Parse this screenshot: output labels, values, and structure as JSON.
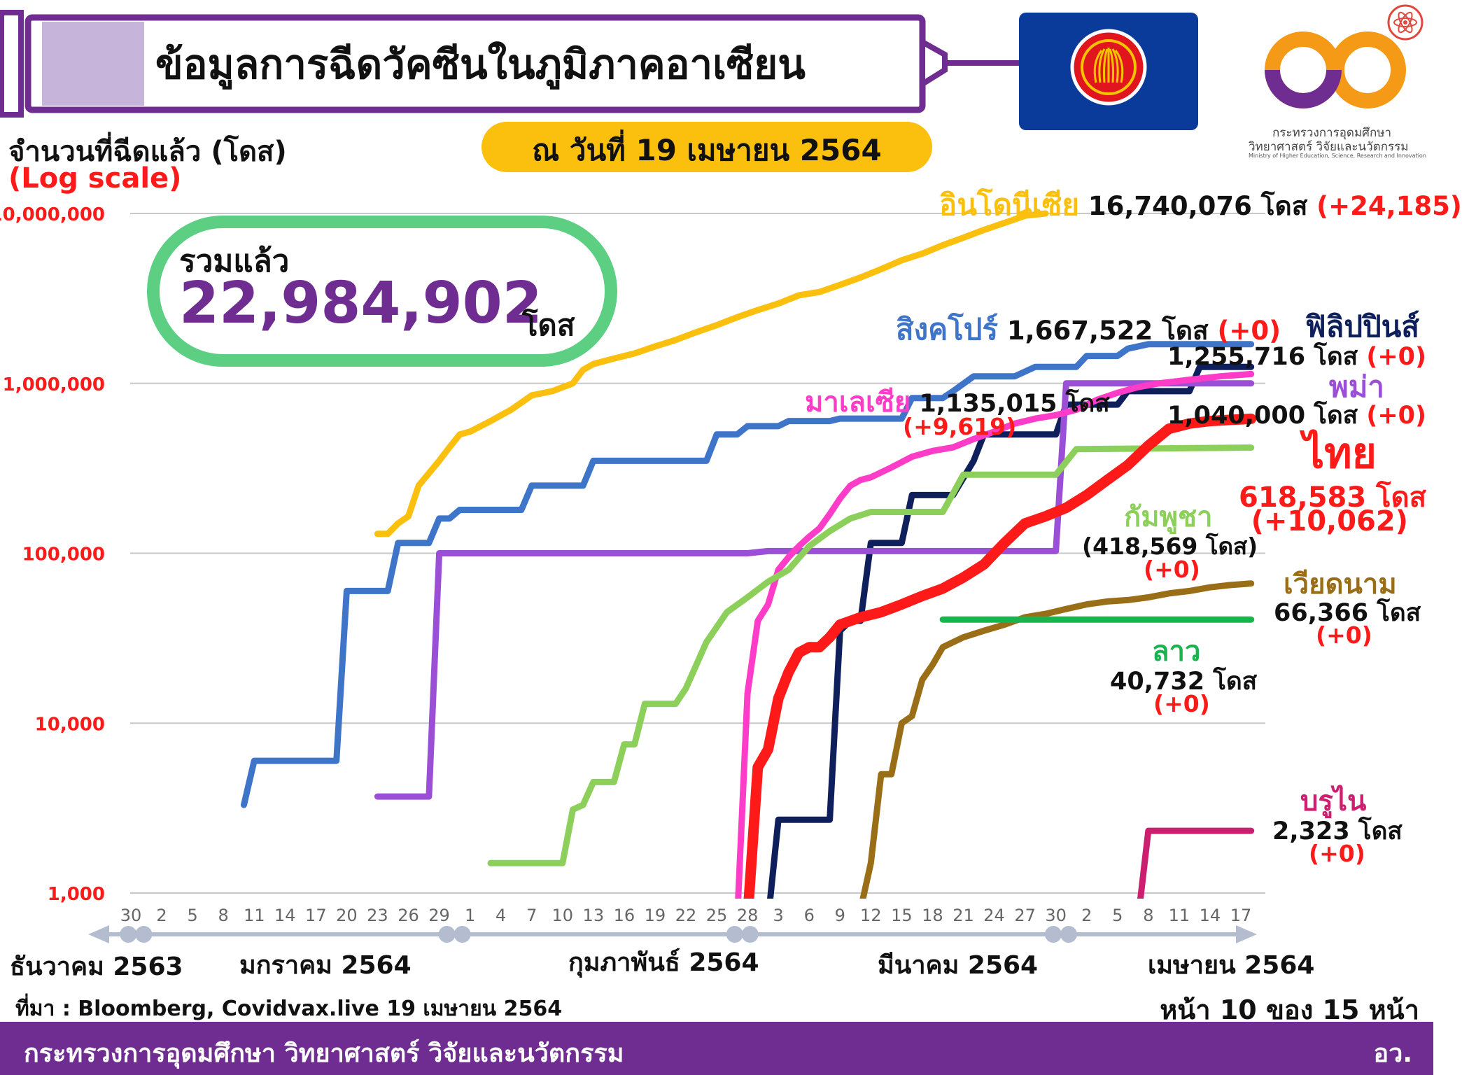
{
  "header": {
    "title": "ข้อมูลการฉีดวัคซีนในภูมิภาคอาเซียน",
    "date_label": "ณ วันที่ 19 เมษายน 2564",
    "ministry_th": "กระทรวงการอุดมศึกษา",
    "ministry_th2": "วิทยาศาสตร์ วิจัยและนวัตกรรม",
    "ministry_en": "Ministry of Higher Education, Science, Research and Innovation"
  },
  "summary": {
    "label": "รวมแล้ว",
    "value": "22,984,902",
    "unit": "โดส"
  },
  "colors": {
    "purple": "#6f2c91",
    "lilac": "#c6b4db",
    "gold": "#fbbf0e",
    "pill": "#5ccf83",
    "asean_blue": "#0a3a9a",
    "asean_red": "#e1151d"
  },
  "chart_data": {
    "type": "line",
    "ylabel": "จำนวนที่ฉีดแล้ว (โดส)",
    "yscale_note": "(Log scale)",
    "y_scale": "log",
    "ylim": [
      1000,
      10000000
    ],
    "yticks": [
      {
        "value": 1000,
        "label": "1,000"
      },
      {
        "value": 10000,
        "label": "10,000"
      },
      {
        "value": 100000,
        "label": "100,000"
      },
      {
        "value": 1000000,
        "label": "1,000,000"
      },
      {
        "value": 10000000,
        "label": "10,000,000"
      }
    ],
    "grid": true,
    "x_axis": "daily, 30 ธ.ค. 2563 – 19 เม.ย. 2564",
    "xticks": [
      {
        "day": 0,
        "label": "30"
      },
      {
        "day": 3,
        "label": "2"
      },
      {
        "day": 6,
        "label": "5"
      },
      {
        "day": 9,
        "label": "8"
      },
      {
        "day": 12,
        "label": "11"
      },
      {
        "day": 15,
        "label": "14"
      },
      {
        "day": 18,
        "label": "17"
      },
      {
        "day": 21,
        "label": "20"
      },
      {
        "day": 24,
        "label": "23"
      },
      {
        "day": 27,
        "label": "26"
      },
      {
        "day": 30,
        "label": "29"
      },
      {
        "day": 33,
        "label": "1"
      },
      {
        "day": 36,
        "label": "4"
      },
      {
        "day": 39,
        "label": "7"
      },
      {
        "day": 42,
        "label": "10"
      },
      {
        "day": 45,
        "label": "13"
      },
      {
        "day": 48,
        "label": "16"
      },
      {
        "day": 51,
        "label": "19"
      },
      {
        "day": 54,
        "label": "22"
      },
      {
        "day": 57,
        "label": "25"
      },
      {
        "day": 60,
        "label": "28"
      },
      {
        "day": 63,
        "label": "3"
      },
      {
        "day": 66,
        "label": "6"
      },
      {
        "day": 69,
        "label": "9"
      },
      {
        "day": 72,
        "label": "12"
      },
      {
        "day": 75,
        "label": "15"
      },
      {
        "day": 78,
        "label": "18"
      },
      {
        "day": 81,
        "label": "21"
      },
      {
        "day": 84,
        "label": "24"
      },
      {
        "day": 87,
        "label": "27"
      },
      {
        "day": 90,
        "label": "30"
      },
      {
        "day": 93,
        "label": "2"
      },
      {
        "day": 96,
        "label": "5"
      },
      {
        "day": 99,
        "label": "8"
      },
      {
        "day": 102,
        "label": "11"
      },
      {
        "day": 105,
        "label": "14"
      },
      {
        "day": 108,
        "label": "17"
      }
    ],
    "month_dividers": [
      0.5,
      31.5,
      59.5,
      90.5
    ],
    "months": [
      {
        "label": "ธันวาคม 2563",
        "day": -9
      },
      {
        "label": "มกราคม 2564",
        "day": 18
      },
      {
        "label": "กุมภาพันธ์ 2564",
        "day": 48
      },
      {
        "label": "มีนาคม 2564",
        "day": 78
      },
      {
        "label": "เมษายน 2564",
        "day": 106
      }
    ],
    "series": [
      {
        "name": "อินโดนีเซีย",
        "color": "#fbbf0e",
        "points": [
          [
            24,
            130000
          ],
          [
            25,
            130000
          ],
          [
            26,
            150000
          ],
          [
            27,
            165000
          ],
          [
            28,
            250000
          ],
          [
            30,
            350000
          ],
          [
            31,
            420000
          ],
          [
            32,
            500000
          ],
          [
            33,
            520000
          ],
          [
            35,
            600000
          ],
          [
            37,
            700000
          ],
          [
            39,
            850000
          ],
          [
            41,
            900000
          ],
          [
            43,
            1000000
          ],
          [
            44,
            1200000
          ],
          [
            45,
            1300000
          ],
          [
            47,
            1400000
          ],
          [
            49,
            1500000
          ],
          [
            51,
            1650000
          ],
          [
            53,
            1800000
          ],
          [
            55,
            2000000
          ],
          [
            57,
            2200000
          ],
          [
            59,
            2450000
          ],
          [
            61,
            2700000
          ],
          [
            63,
            2950000
          ],
          [
            65,
            3300000
          ],
          [
            67,
            3450000
          ],
          [
            69,
            3800000
          ],
          [
            71,
            4200000
          ],
          [
            73,
            4700000
          ],
          [
            75,
            5300000
          ],
          [
            77,
            5800000
          ],
          [
            79,
            6500000
          ],
          [
            81,
            7200000
          ],
          [
            83,
            8000000
          ],
          [
            85,
            8800000
          ],
          [
            87,
            9700000
          ],
          [
            89,
            10000000
          ]
        ]
      },
      {
        "name": "สิงคโปร์",
        "color": "#3f75c9",
        "points": [
          [
            11,
            3300
          ],
          [
            12,
            6000
          ],
          [
            20,
            6000
          ],
          [
            21,
            60000
          ],
          [
            25,
            60000
          ],
          [
            26,
            115000
          ],
          [
            29,
            115000
          ],
          [
            30,
            160000
          ],
          [
            31,
            160000
          ],
          [
            32,
            180000
          ],
          [
            38,
            180000
          ],
          [
            39,
            250000
          ],
          [
            44,
            250000
          ],
          [
            45,
            350000
          ],
          [
            56,
            350000
          ],
          [
            57,
            500000
          ],
          [
            59,
            500000
          ],
          [
            60,
            560000
          ],
          [
            63,
            560000
          ],
          [
            64,
            600000
          ],
          [
            68,
            600000
          ],
          [
            69,
            620000
          ],
          [
            75,
            620000
          ],
          [
            76,
            820000
          ],
          [
            79,
            820000
          ],
          [
            80,
            900000
          ],
          [
            82,
            1100000
          ],
          [
            86,
            1100000
          ],
          [
            88,
            1250000
          ],
          [
            92,
            1250000
          ],
          [
            93,
            1450000
          ],
          [
            96,
            1450000
          ],
          [
            97,
            1600000
          ],
          [
            99,
            1700000
          ],
          [
            109,
            1700000
          ]
        ]
      },
      {
        "name": "ฟิลิปปินส์",
        "color": "#0e1f5c",
        "points": [
          [
            62,
            700
          ],
          [
            63,
            2700
          ],
          [
            66,
            2700
          ],
          [
            67,
            2700
          ],
          [
            68,
            2700
          ],
          [
            69,
            35000
          ],
          [
            70,
            40000
          ],
          [
            71,
            40000
          ],
          [
            72,
            115000
          ],
          [
            75,
            115000
          ],
          [
            76,
            220000
          ],
          [
            80,
            220000
          ],
          [
            82,
            350000
          ],
          [
            83,
            500000
          ],
          [
            88,
            500000
          ],
          [
            90,
            500000
          ],
          [
            91,
            750000
          ],
          [
            96,
            750000
          ],
          [
            97,
            900000
          ],
          [
            103,
            900000
          ],
          [
            104,
            1250000
          ],
          [
            109,
            1250000
          ]
        ]
      },
      {
        "name": "พม่า",
        "color": "#9b4fd6",
        "points": [
          [
            24,
            3700
          ],
          [
            29,
            3700
          ],
          [
            30,
            100000
          ],
          [
            60,
            100000
          ],
          [
            62,
            103000
          ],
          [
            90,
            103000
          ],
          [
            91,
            1000000
          ],
          [
            109,
            1000000
          ]
        ]
      },
      {
        "name": "มาเลเซีย",
        "color": "#ff3cc8",
        "points": [
          [
            59,
            700
          ],
          [
            60,
            15000
          ],
          [
            61,
            40000
          ],
          [
            62,
            50000
          ],
          [
            63,
            80000
          ],
          [
            64,
            95000
          ],
          [
            65,
            110000
          ],
          [
            66,
            125000
          ],
          [
            67,
            140000
          ],
          [
            68,
            170000
          ],
          [
            69,
            210000
          ],
          [
            70,
            250000
          ],
          [
            71,
            270000
          ],
          [
            72,
            280000
          ],
          [
            74,
            320000
          ],
          [
            76,
            370000
          ],
          [
            78,
            400000
          ],
          [
            80,
            420000
          ],
          [
            82,
            470000
          ],
          [
            84,
            520000
          ],
          [
            86,
            580000
          ],
          [
            88,
            620000
          ],
          [
            90,
            650000
          ],
          [
            92,
            700000
          ],
          [
            94,
            800000
          ],
          [
            96,
            880000
          ],
          [
            98,
            950000
          ],
          [
            100,
            1000000
          ],
          [
            103,
            1050000
          ],
          [
            106,
            1100000
          ],
          [
            109,
            1135015
          ]
        ]
      },
      {
        "name": "กัมพูชา",
        "color": "#8ccf5a",
        "points": [
          [
            35,
            1500
          ],
          [
            40,
            1500
          ],
          [
            41,
            1500
          ],
          [
            42,
            1500
          ],
          [
            43,
            3100
          ],
          [
            44,
            3300
          ],
          [
            45,
            4500
          ],
          [
            46,
            4500
          ],
          [
            47,
            4500
          ],
          [
            48,
            7500
          ],
          [
            49,
            7500
          ],
          [
            50,
            13000
          ],
          [
            52,
            13000
          ],
          [
            53,
            13000
          ],
          [
            54,
            16000
          ],
          [
            56,
            30000
          ],
          [
            58,
            45000
          ],
          [
            60,
            55000
          ],
          [
            62,
            68000
          ],
          [
            64,
            80000
          ],
          [
            66,
            110000
          ],
          [
            68,
            135000
          ],
          [
            70,
            160000
          ],
          [
            72,
            175000
          ],
          [
            74,
            175000
          ],
          [
            78,
            175000
          ],
          [
            79,
            175000
          ],
          [
            81,
            290000
          ],
          [
            88,
            290000
          ],
          [
            89,
            290000
          ],
          [
            90,
            290000
          ],
          [
            92,
            410000
          ],
          [
            109,
            418569
          ]
        ]
      },
      {
        "name": "ไทย",
        "color": "#ff1a1a",
        "points": [
          [
            60,
            700
          ],
          [
            61,
            5500
          ],
          [
            62,
            7000
          ],
          [
            63,
            14000
          ],
          [
            64,
            20000
          ],
          [
            65,
            26000
          ],
          [
            66,
            28000
          ],
          [
            67,
            28000
          ],
          [
            68,
            32000
          ],
          [
            69,
            38000
          ],
          [
            71,
            42000
          ],
          [
            73,
            45000
          ],
          [
            75,
            50000
          ],
          [
            77,
            56000
          ],
          [
            79,
            62000
          ],
          [
            81,
            72000
          ],
          [
            83,
            86000
          ],
          [
            85,
            115000
          ],
          [
            87,
            150000
          ],
          [
            89,
            165000
          ],
          [
            91,
            185000
          ],
          [
            93,
            220000
          ],
          [
            95,
            270000
          ],
          [
            97,
            330000
          ],
          [
            99,
            430000
          ],
          [
            101,
            540000
          ],
          [
            103,
            580000
          ],
          [
            105,
            600000
          ],
          [
            107,
            610000
          ],
          [
            109,
            618583
          ]
        ]
      },
      {
        "name": "เวียดนาม",
        "color": "#9a6e17",
        "points": [
          [
            71,
            800
          ],
          [
            72,
            1500
          ],
          [
            73,
            5000
          ],
          [
            74,
            5000
          ],
          [
            75,
            10000
          ],
          [
            76,
            11000
          ],
          [
            77,
            18000
          ],
          [
            78,
            22000
          ],
          [
            79,
            28000
          ],
          [
            81,
            32000
          ],
          [
            83,
            35000
          ],
          [
            85,
            38000
          ],
          [
            87,
            42000
          ],
          [
            89,
            44000
          ],
          [
            91,
            47000
          ],
          [
            93,
            50000
          ],
          [
            95,
            52000
          ],
          [
            97,
            53000
          ],
          [
            99,
            55000
          ],
          [
            101,
            58000
          ],
          [
            103,
            60000
          ],
          [
            105,
            63000
          ],
          [
            107,
            65000
          ],
          [
            109,
            66366
          ]
        ]
      },
      {
        "name": "ลาว",
        "color": "#18b44e",
        "points": [
          [
            79,
            40732
          ],
          [
            109,
            40732
          ]
        ]
      },
      {
        "name": "บรูไน",
        "color": "#cc1f6f",
        "points": [
          [
            98,
            700
          ],
          [
            99,
            2323
          ],
          [
            109,
            2323
          ]
        ]
      }
    ],
    "annotations": {
      "indonesia": {
        "name": "อินโดนีเซีย",
        "value": "16,740,076 โดส",
        "change": "(+24,185)"
      },
      "singapore": {
        "name": "สิงคโปร์",
        "value": "1,667,522 โดส",
        "change": "(+0)"
      },
      "philippines": {
        "name": "ฟิลิปปินส์",
        "value": "1,255,716 โดส",
        "change": "(+0)"
      },
      "myanmar": {
        "name": "พม่า",
        "value": "1,040,000 โดส",
        "change": "(+0)"
      },
      "malaysia": {
        "name": "มาเลเซีย",
        "value": "1,135,015 โดส",
        "change": "(+9,619)"
      },
      "thailand": {
        "name": "ไทย",
        "value": "618,583 โดส",
        "change": "(+10,062)"
      },
      "cambodia": {
        "name": "กัมพูชา",
        "value": "(418,569 โดส)",
        "change": "(+0)"
      },
      "vietnam": {
        "name": "เวียดนาม",
        "value": "66,366 โดส",
        "change": "(+0)"
      },
      "laos": {
        "name": "ลาว",
        "value": "40,732 โดส",
        "change": "(+0)"
      },
      "brunei": {
        "name": "บรูไน",
        "value": "2,323 โดส",
        "change": "(+0)"
      }
    }
  },
  "source": "ที่มา : Bloomberg, Covidvax.live 19 เมษายน 2564",
  "page_indicator": "หน้า 10 ของ 15 หน้า",
  "footer": {
    "ministry": "กระทรวงการอุดมศึกษา วิทยาศาสตร์ วิจัยและนวัตกรรม",
    "abbr": "อว."
  }
}
